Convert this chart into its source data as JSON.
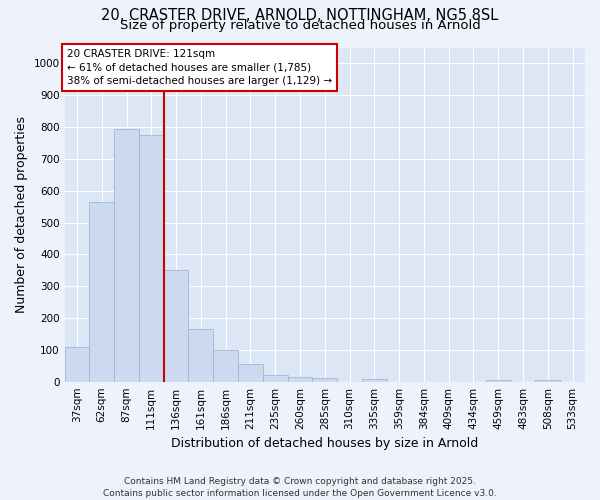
{
  "title_line1": "20, CRASTER DRIVE, ARNOLD, NOTTINGHAM, NG5 8SL",
  "title_line2": "Size of property relative to detached houses in Arnold",
  "xlabel": "Distribution of detached houses by size in Arnold",
  "ylabel": "Number of detached properties",
  "categories": [
    "37sqm",
    "62sqm",
    "87sqm",
    "111sqm",
    "136sqm",
    "161sqm",
    "186sqm",
    "211sqm",
    "235sqm",
    "260sqm",
    "285sqm",
    "310sqm",
    "335sqm",
    "359sqm",
    "384sqm",
    "409sqm",
    "434sqm",
    "459sqm",
    "483sqm",
    "508sqm",
    "533sqm"
  ],
  "bar_values": [
    110,
    565,
    795,
    775,
    350,
    165,
    100,
    55,
    20,
    15,
    10,
    0,
    8,
    0,
    0,
    0,
    0,
    5,
    0,
    5,
    0
  ],
  "bar_color": "#ccd9ee",
  "bar_edge_color": "#9ab8d8",
  "vline_color": "#cc0000",
  "annotation_text": "20 CRASTER DRIVE: 121sqm\n← 61% of detached houses are smaller (1,785)\n38% of semi-detached houses are larger (1,129) →",
  "annotation_box_edge_color": "#cc0000",
  "ylim_max": 1050,
  "yticks": [
    0,
    100,
    200,
    300,
    400,
    500,
    600,
    700,
    800,
    900,
    1000
  ],
  "plot_bg_color": "#dde6f5",
  "grid_color": "#ffffff",
  "fig_bg_color": "#eef2fa",
  "footnote": "Contains HM Land Registry data © Crown copyright and database right 2025.\nContains public sector information licensed under the Open Government Licence v3.0.",
  "title_fontsize": 10.5,
  "subtitle_fontsize": 9.5,
  "axis_label_fontsize": 9,
  "tick_fontsize": 7.5,
  "annotation_fontsize": 7.5,
  "footnote_fontsize": 6.5
}
